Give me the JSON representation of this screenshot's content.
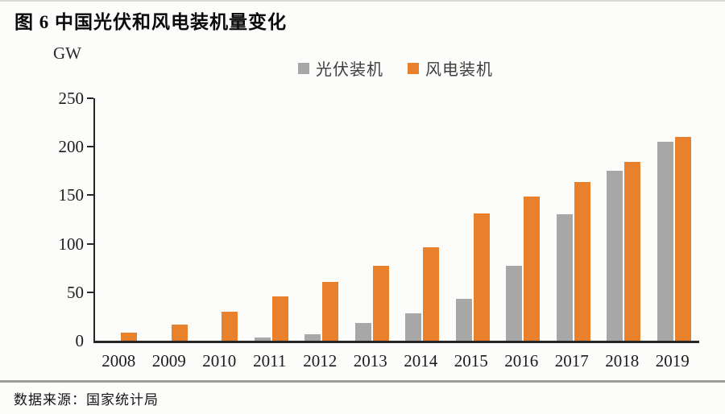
{
  "header": {
    "title": "图 6 中国光伏和风电装机量变化"
  },
  "chart_data": {
    "type": "bar",
    "title": "图 6 中国光伏和风电装机量变化",
    "unit_label": "GW",
    "categories": [
      "2008",
      "2009",
      "2010",
      "2011",
      "2012",
      "2013",
      "2014",
      "2015",
      "2016",
      "2017",
      "2018",
      "2019"
    ],
    "series": [
      {
        "name": "光伏装机",
        "color": "#A7A7A7",
        "values": [
          0,
          0,
          0,
          3,
          7,
          18,
          28,
          43,
          77,
          130,
          175,
          205
        ]
      },
      {
        "name": "风电装机",
        "color": "#E8802C",
        "values": [
          8,
          17,
          30,
          46,
          61,
          77,
          96,
          131,
          149,
          164,
          184,
          210
        ]
      }
    ],
    "ylim": [
      0,
      250
    ],
    "yticks": [
      0,
      50,
      100,
      150,
      200,
      250
    ],
    "grid": false,
    "legend_position": "top-center"
  },
  "footer": {
    "source": "数据来源：国家统计局"
  },
  "colors": {
    "solar_bar": "#A7A7A7",
    "wind_bar": "#E8802C",
    "axis": "#262626",
    "divider": "#9c9c9a"
  }
}
